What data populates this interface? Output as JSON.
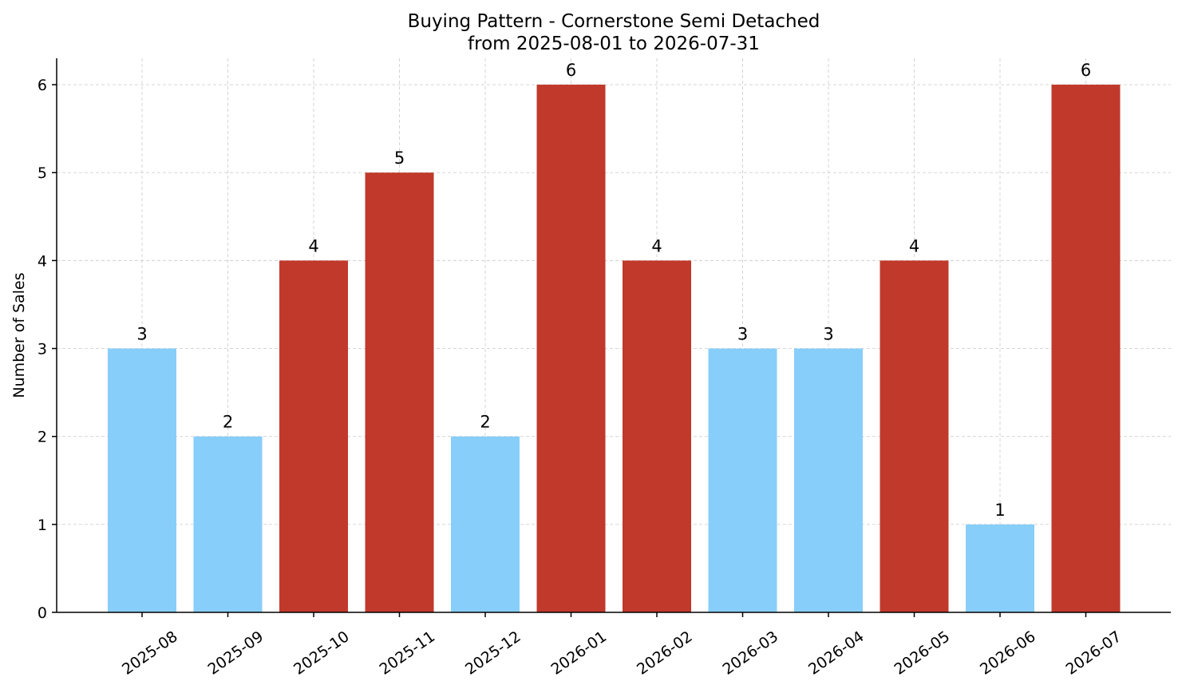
{
  "chart_data": {
    "type": "bar",
    "title": "Buying Pattern - Cornerstone Semi Detached",
    "subtitle": "from 2025-08-01 to 2026-07-31",
    "xlabel": "",
    "ylabel": "Number of Sales",
    "ylim": [
      0,
      6.3
    ],
    "yticks": [
      0,
      1,
      2,
      3,
      4,
      5,
      6
    ],
    "grid": true,
    "categories": [
      "2025-08",
      "2025-09",
      "2025-10",
      "2025-11",
      "2025-12",
      "2026-01",
      "2026-02",
      "2026-03",
      "2026-04",
      "2026-05",
      "2026-06",
      "2026-07"
    ],
    "values": [
      3,
      2,
      4,
      5,
      2,
      6,
      4,
      3,
      3,
      4,
      1,
      6
    ],
    "highlight": [
      false,
      false,
      true,
      true,
      false,
      true,
      true,
      false,
      false,
      true,
      false,
      true
    ],
    "colors": {
      "normal": "#87cefa",
      "highlight": "#c0392b"
    }
  }
}
